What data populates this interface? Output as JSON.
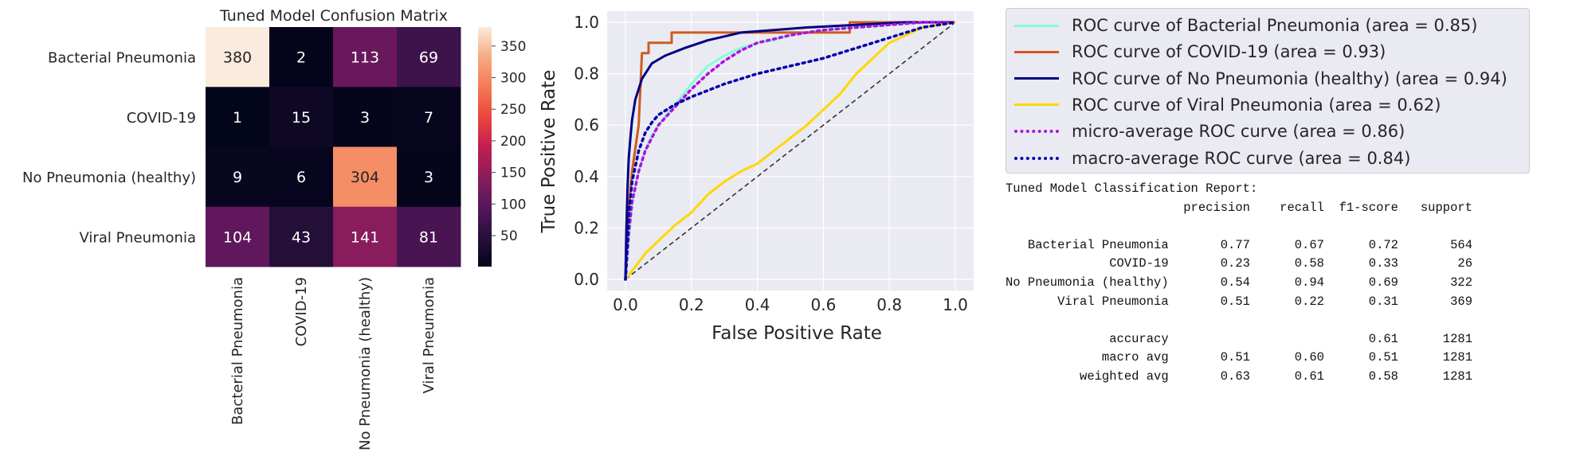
{
  "chart_data": [
    {
      "type": "heatmap",
      "title": "Tuned Model Confusion Matrix",
      "row_labels": [
        "Bacterial Pneumonia",
        "COVID-19",
        "No Pneumonia (healthy)",
        "Viral Pneumonia"
      ],
      "col_labels": [
        "Bacterial Pneumonia",
        "COVID-19",
        "No Pneumonia (healthy)",
        "Viral Pneumonia"
      ],
      "values": [
        [
          380,
          2,
          113,
          69
        ],
        [
          1,
          15,
          3,
          7
        ],
        [
          9,
          6,
          304,
          3
        ],
        [
          104,
          43,
          141,
          81
        ]
      ],
      "colorbar": {
        "ticks": [
          "50",
          "100",
          "150",
          "200",
          "250",
          "300",
          "350"
        ],
        "min": 1,
        "max": 380,
        "colormap": "rocket"
      }
    },
    {
      "type": "line",
      "xlabel": "False Positive Rate",
      "ylabel": "True Positive Rate",
      "xlim": [
        0.0,
        1.0
      ],
      "ylim": [
        0.0,
        1.0
      ],
      "xticks": [
        "0.0",
        "0.2",
        "0.4",
        "0.6",
        "0.8",
        "1.0"
      ],
      "yticks": [
        "0.0",
        "0.2",
        "0.4",
        "0.6",
        "0.8",
        "1.0"
      ],
      "grid": true,
      "legend_position": "outside-right",
      "series": [
        {
          "name": "ROC curve of Bacterial Pneumonia (area = 0.85)",
          "color": "#7fffd4",
          "dash": "solid",
          "x": [
            0,
            0.01,
            0.02,
            0.04,
            0.06,
            0.08,
            0.1,
            0.15,
            0.2,
            0.25,
            0.3,
            0.35,
            0.4,
            0.45,
            0.5,
            0.6,
            0.7,
            0.8,
            0.9,
            1.0
          ],
          "y": [
            0,
            0.15,
            0.3,
            0.42,
            0.5,
            0.56,
            0.6,
            0.68,
            0.76,
            0.83,
            0.87,
            0.9,
            0.92,
            0.93,
            0.95,
            0.97,
            0.98,
            0.99,
            1.0,
            1.0
          ]
        },
        {
          "name": "ROC curve of COVID-19 (area = 0.93)",
          "color": "#cd5c1e",
          "dash": "solid",
          "x": [
            0,
            0.01,
            0.02,
            0.04,
            0.05,
            0.07,
            0.07,
            0.14,
            0.14,
            0.68,
            0.68,
            0.78,
            0.78,
            1.0
          ],
          "y": [
            0,
            0.27,
            0.42,
            0.6,
            0.88,
            0.88,
            0.92,
            0.92,
            0.96,
            0.96,
            1.0,
            1.0,
            1.0,
            1.0
          ]
        },
        {
          "name": "ROC curve of No Pneumonia (healthy) (area = 0.94)",
          "color": "#000080",
          "dash": "solid",
          "x": [
            0,
            0.003,
            0.006,
            0.01,
            0.015,
            0.02,
            0.03,
            0.05,
            0.08,
            0.12,
            0.18,
            0.25,
            0.35,
            0.45,
            0.55,
            0.7,
            0.85,
            1.0
          ],
          "y": [
            0,
            0.2,
            0.35,
            0.47,
            0.55,
            0.62,
            0.7,
            0.78,
            0.84,
            0.87,
            0.9,
            0.93,
            0.96,
            0.97,
            0.98,
            0.99,
            1.0,
            1.0
          ]
        },
        {
          "name": "ROC curve of Viral Pneumonia (area = 0.62)",
          "color": "#ffd700",
          "dash": "solid",
          "x": [
            0,
            0.03,
            0.06,
            0.1,
            0.15,
            0.2,
            0.25,
            0.3,
            0.35,
            0.4,
            0.45,
            0.5,
            0.55,
            0.6,
            0.65,
            0.7,
            0.75,
            0.8,
            0.85,
            0.9,
            0.95,
            1.0
          ],
          "y": [
            0,
            0.05,
            0.1,
            0.15,
            0.21,
            0.26,
            0.33,
            0.38,
            0.42,
            0.45,
            0.5,
            0.55,
            0.6,
            0.66,
            0.72,
            0.8,
            0.86,
            0.92,
            0.95,
            0.98,
            0.99,
            1.0
          ]
        },
        {
          "name": "micro-average ROC curve (area = 0.86)",
          "color": "#b010e0",
          "dash": "dotted",
          "x": [
            0,
            0.01,
            0.02,
            0.04,
            0.06,
            0.08,
            0.1,
            0.15,
            0.2,
            0.25,
            0.3,
            0.35,
            0.4,
            0.5,
            0.6,
            0.7,
            0.8,
            0.9,
            1.0
          ],
          "y": [
            0,
            0.18,
            0.3,
            0.42,
            0.5,
            0.55,
            0.6,
            0.67,
            0.74,
            0.8,
            0.85,
            0.89,
            0.92,
            0.95,
            0.97,
            0.98,
            0.99,
            1.0,
            1.0
          ]
        },
        {
          "name": "macro-average ROC curve (area = 0.84)",
          "color": "#0000aa",
          "dash": "dotted",
          "x": [
            0,
            0.01,
            0.02,
            0.04,
            0.06,
            0.08,
            0.1,
            0.15,
            0.2,
            0.3,
            0.4,
            0.5,
            0.6,
            0.7,
            0.8,
            0.9,
            1.0
          ],
          "y": [
            0,
            0.25,
            0.38,
            0.5,
            0.57,
            0.61,
            0.64,
            0.68,
            0.71,
            0.76,
            0.8,
            0.83,
            0.86,
            0.9,
            0.94,
            0.98,
            1.0
          ]
        }
      ],
      "diagonal": {
        "x": [
          0,
          1
        ],
        "y": [
          0,
          1
        ],
        "color": "#333333",
        "dash": "dashed"
      }
    }
  ],
  "report": {
    "title": "Tuned Model Classification Report:",
    "headers": [
      "precision",
      "recall",
      "f1-score",
      "support"
    ],
    "rows": [
      {
        "label": "Bacterial Pneumonia",
        "cells": [
          "0.77",
          "0.67",
          "0.72",
          "564"
        ]
      },
      {
        "label": "COVID-19",
        "cells": [
          "0.23",
          "0.58",
          "0.33",
          "26"
        ]
      },
      {
        "label": "No Pneumonia (healthy)",
        "cells": [
          "0.54",
          "0.94",
          "0.69",
          "322"
        ]
      },
      {
        "label": "Viral Pneumonia",
        "cells": [
          "0.51",
          "0.22",
          "0.31",
          "369"
        ]
      }
    ],
    "summary_rows": [
      {
        "label": "accuracy",
        "cells": [
          "",
          "",
          "0.61",
          "1281"
        ]
      },
      {
        "label": "macro avg",
        "cells": [
          "0.51",
          "0.60",
          "0.51",
          "1281"
        ]
      },
      {
        "label": "weighted avg",
        "cells": [
          "0.63",
          "0.61",
          "0.58",
          "1281"
        ]
      }
    ]
  }
}
